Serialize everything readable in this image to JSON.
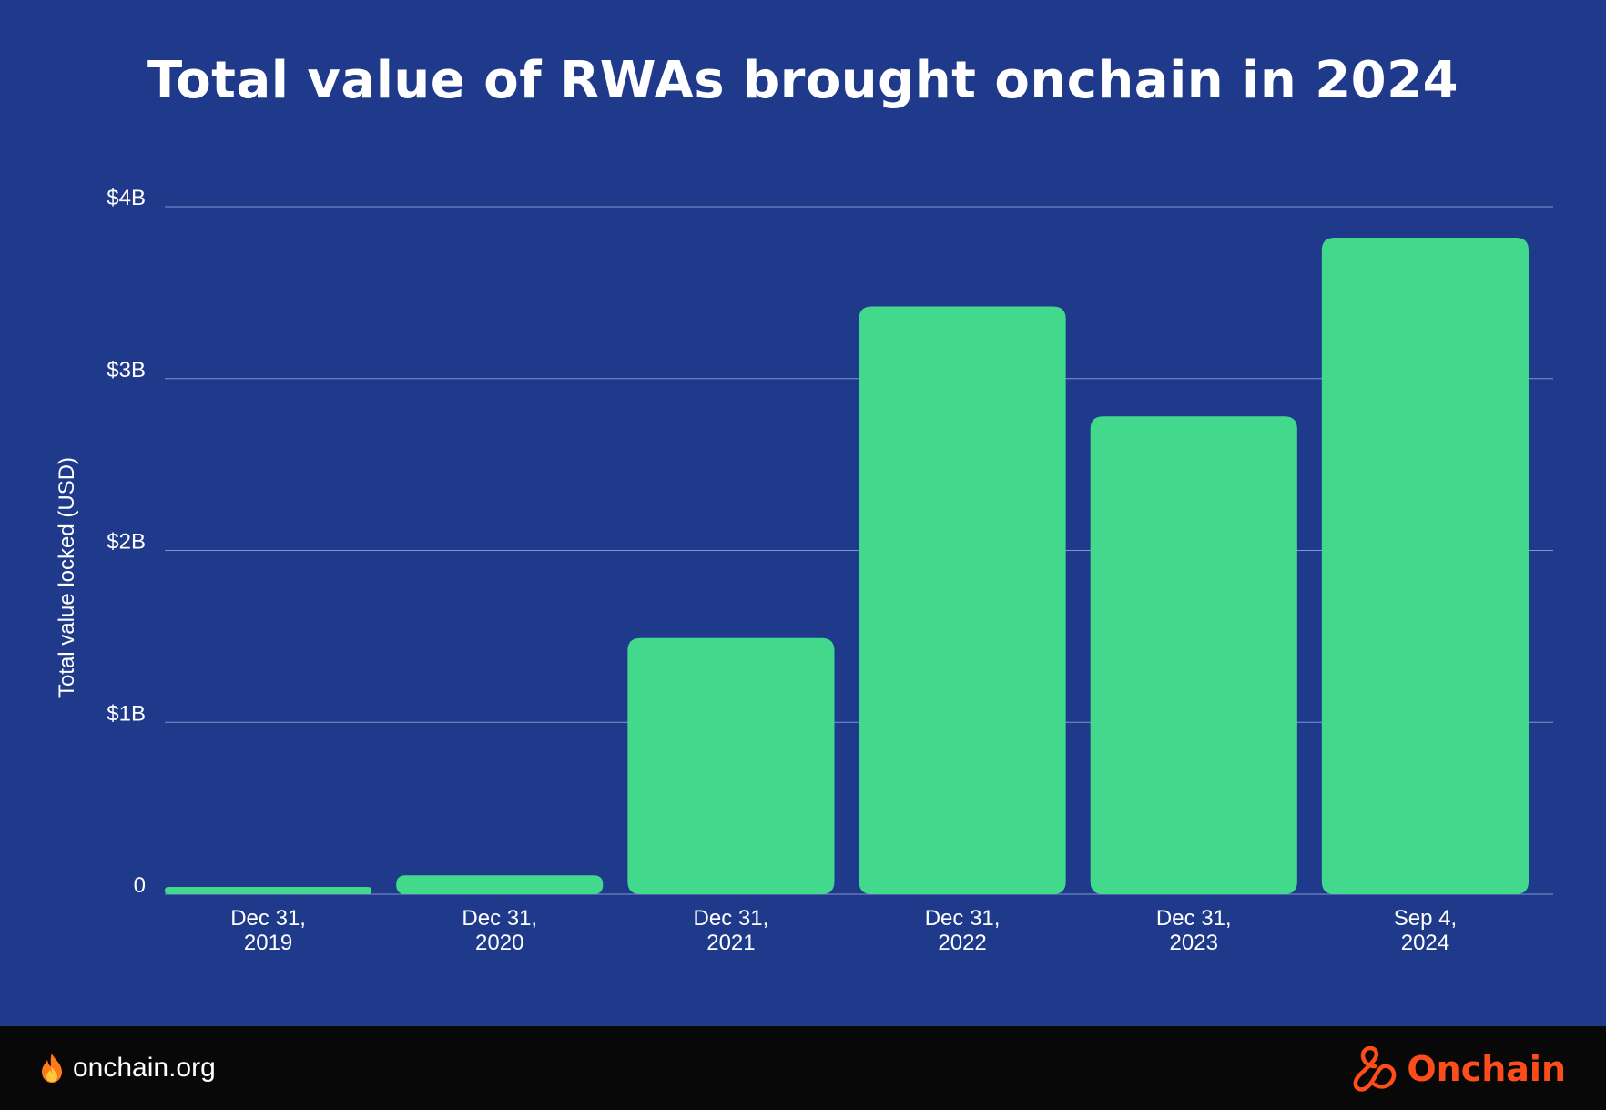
{
  "chart_data": {
    "type": "bar",
    "title": "Total value of RWAs brought onchain in 2024",
    "xlabel": "",
    "ylabel": "Total value locked (USD)",
    "ylim": [
      0,
      4000000000
    ],
    "yticks": [
      0,
      1000000000,
      2000000000,
      3000000000,
      4000000000
    ],
    "ytick_labels": [
      "0",
      "$1B",
      "$2B",
      "$3B",
      "$4B"
    ],
    "categories": [
      [
        "Dec 31,",
        "2019"
      ],
      [
        "Dec 31,",
        "2020"
      ],
      [
        "Dec 31,",
        "2021"
      ],
      [
        "Dec 31,",
        "2022"
      ],
      [
        "Dec 31,",
        "2023"
      ],
      [
        "Sep 4,",
        "2024"
      ]
    ],
    "values": [
      30000000,
      110000000,
      1490000000,
      3420000000,
      2780000000,
      3820000000
    ],
    "bar_color": "#42d98c",
    "gridline_color": "#7f95cf",
    "grid": true,
    "legend": "none"
  },
  "footer": {
    "site": "onchain.org",
    "brand": "Onchain",
    "brand_color": "#ff4d1a"
  }
}
